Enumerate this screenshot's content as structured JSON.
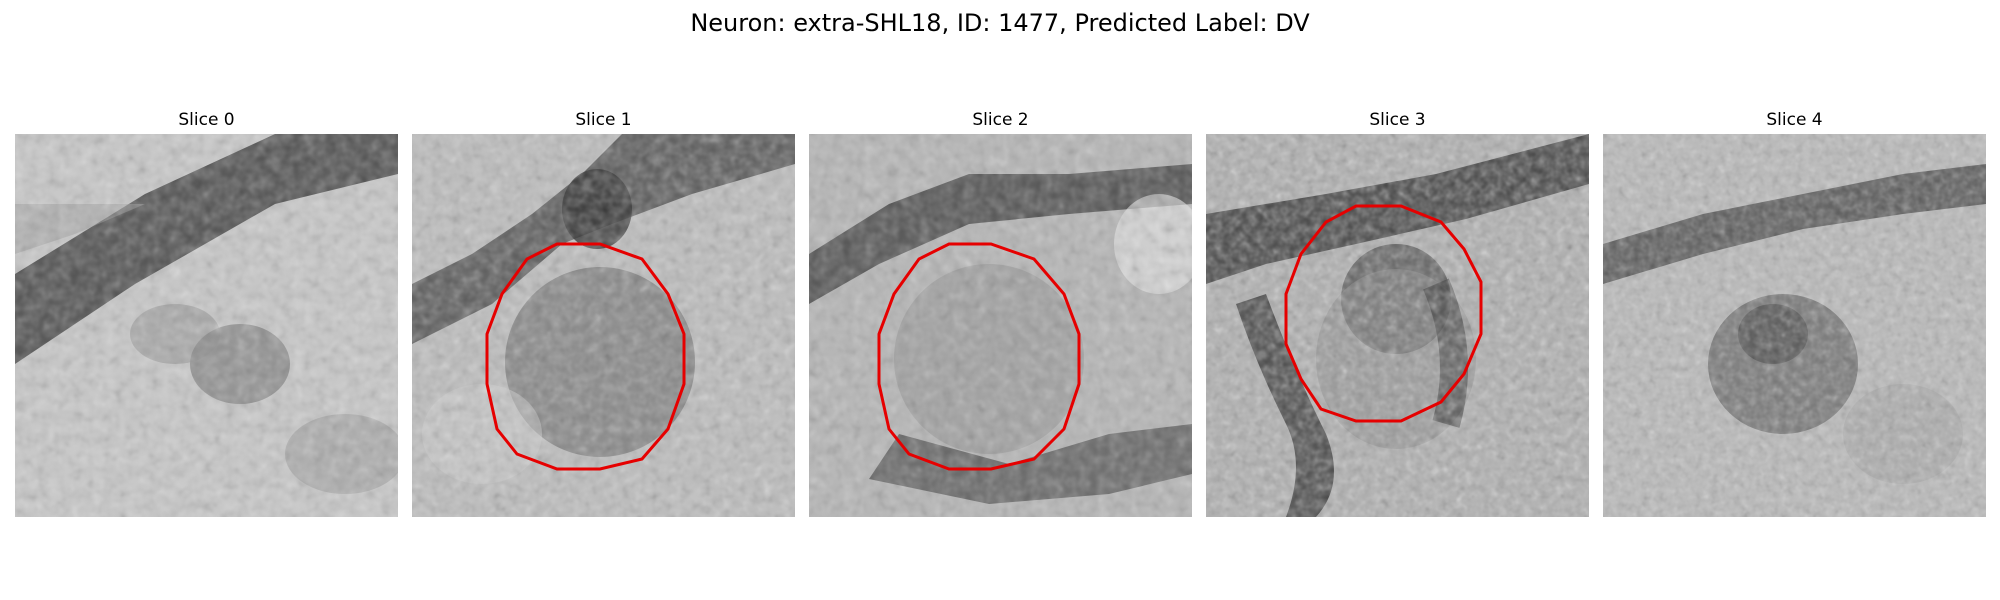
{
  "figure": {
    "title": "Neuron: extra-SHL18, ID: 1477, Predicted Label: DV"
  },
  "slices": [
    {
      "title": "Slice 0",
      "has_contour": false
    },
    {
      "title": "Slice 1",
      "has_contour": true
    },
    {
      "title": "Slice 2",
      "has_contour": true
    },
    {
      "title": "Slice 3",
      "has_contour": true
    },
    {
      "title": "Slice 4",
      "has_contour": false
    }
  ],
  "style": {
    "contour_color": "#e60000",
    "colormap": "grayscale"
  }
}
